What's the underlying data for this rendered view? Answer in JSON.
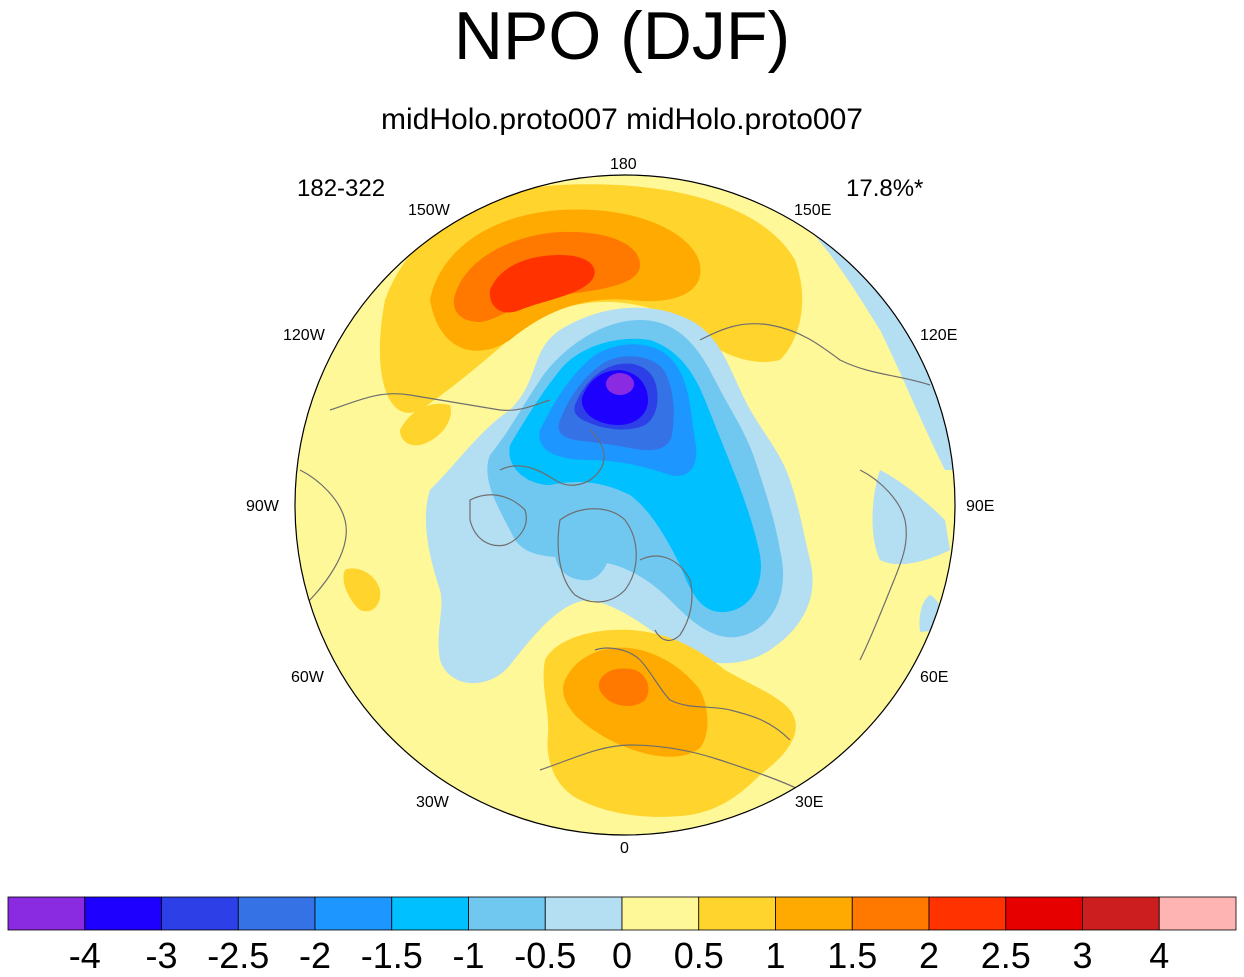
{
  "title": "NPO (DJF)",
  "subtitle": "midHolo.proto007  midHolo.proto007",
  "left_string": "182-322",
  "right_string": "17.8%*",
  "longitude_labels": {
    "top": "180",
    "top_left": "150W",
    "top_right": "150E",
    "upper_left": "120W",
    "upper_right": "120E",
    "left": "90W",
    "right": "90E",
    "lower_left": "60W",
    "lower_right": "60E",
    "bottom_left": "30W",
    "bottom_right": "30E",
    "bottom": "0"
  },
  "colorbar": {
    "colors": [
      "#8a2be2",
      "#1e00ff",
      "#2d40e8",
      "#3572e6",
      "#1e96ff",
      "#00c0ff",
      "#70c8f0",
      "#b4def2",
      "#fff898",
      "#ffd42c",
      "#ffaa00",
      "#ff7800",
      "#ff3200",
      "#e60000",
      "#cc1e1e",
      "#ffb4b4"
    ],
    "labels": [
      "-4",
      "-3",
      "-2.5",
      "-2",
      "-1.5",
      "-1",
      "-0.5",
      "0",
      "0.5",
      "1",
      "1.5",
      "2",
      "2.5",
      "3",
      "4"
    ]
  },
  "map": {
    "projection": "north polar stereographic",
    "field_colors": {
      "background": "#fff898",
      "neg_0_5": "#b4def2",
      "neg_1": "#70c8f0",
      "neg_1_5": "#00c0ff",
      "neg_2": "#1e96ff",
      "neg_2_5": "#3572e6",
      "neg_3": "#2d40e8",
      "neg_4": "#1e00ff",
      "neg_min": "#8a2be2",
      "pos_1": "#ffd42c",
      "pos_1_5": "#ffaa00",
      "pos_2": "#ff7800",
      "pos_2_5": "#ff3200",
      "coast": "#6e6e6e"
    }
  }
}
